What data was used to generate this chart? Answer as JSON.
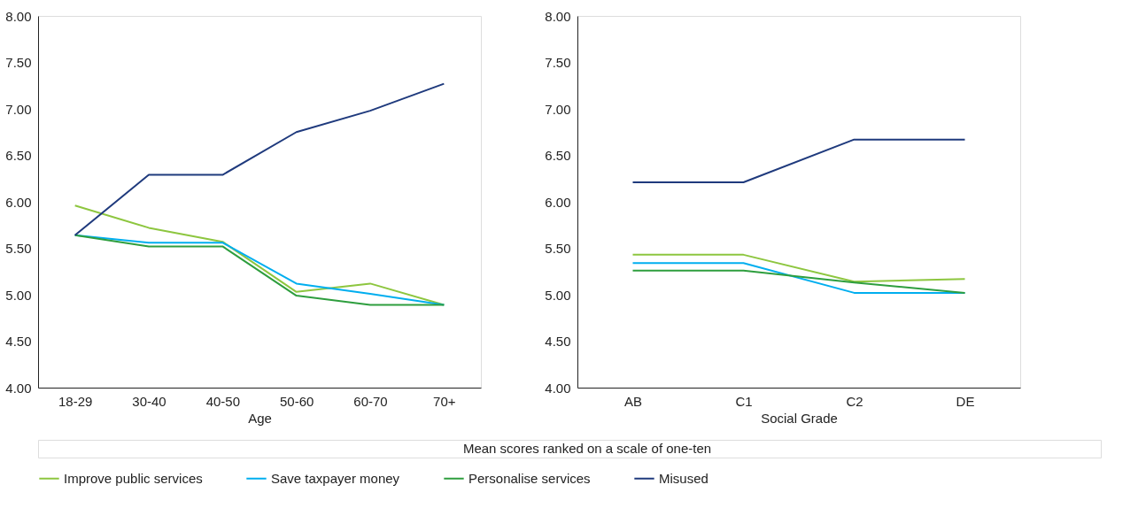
{
  "chart_data": [
    {
      "type": "line",
      "xlabel": "Age",
      "categories": [
        "18-29",
        "30-40",
        "40-50",
        "50-60",
        "60-70",
        "70+"
      ],
      "series": [
        {
          "name": "Improve public services",
          "color": "#8dc63f",
          "values": [
            5.96,
            5.72,
            5.57,
            5.03,
            5.12,
            4.89
          ]
        },
        {
          "name": "Save taxpayer money",
          "color": "#00aeef",
          "values": [
            5.64,
            5.56,
            5.56,
            5.12,
            5.01,
            4.89
          ]
        },
        {
          "name": "Personalise services",
          "color": "#2e9e3e",
          "values": [
            5.64,
            5.52,
            5.52,
            4.99,
            4.89,
            4.89
          ]
        },
        {
          "name": "Misused",
          "color": "#1f3a7d",
          "values": [
            5.64,
            6.29,
            6.29,
            6.75,
            6.98,
            7.27
          ]
        }
      ],
      "ylim": [
        4,
        8
      ],
      "yticks": [
        {
          "value": 4,
          "label": "4.00"
        },
        {
          "value": 4.5,
          "label": "4.50"
        },
        {
          "value": 5,
          "label": "5.00"
        },
        {
          "value": 5.5,
          "label": "5.50"
        },
        {
          "value": 6,
          "label": "6.00"
        },
        {
          "value": 6.5,
          "label": "6.50"
        },
        {
          "value": 7,
          "label": "7.00"
        },
        {
          "value": 7.5,
          "label": "7.50"
        },
        {
          "value": 8,
          "label": "8.00"
        }
      ],
      "grid": false,
      "legend": "bottom",
      "marker": "none",
      "annotations": [
        "Mean scores ranked on a scale of one-ten"
      ]
    },
    {
      "type": "line",
      "xlabel": "Social Grade",
      "categories": [
        "AB",
        "C1",
        "C2",
        "DE"
      ],
      "series": [
        {
          "name": "Improve public services",
          "color": "#8dc63f",
          "values": [
            5.43,
            5.43,
            5.14,
            5.17
          ]
        },
        {
          "name": "Save taxpayer money",
          "color": "#00aeef",
          "values": [
            5.34,
            5.34,
            5.02,
            5.02
          ]
        },
        {
          "name": "Personalise services",
          "color": "#2e9e3e",
          "values": [
            5.26,
            5.26,
            5.13,
            5.02
          ]
        },
        {
          "name": "Misused",
          "color": "#1f3a7d",
          "values": [
            6.21,
            6.21,
            6.67,
            6.67
          ]
        }
      ],
      "ylim": [
        4,
        8
      ],
      "yticks": [
        {
          "value": 4,
          "label": "4.00"
        },
        {
          "value": 4.5,
          "label": "4.50"
        },
        {
          "value": 5,
          "label": "5.00"
        },
        {
          "value": 5.5,
          "label": "5.50"
        },
        {
          "value": 6,
          "label": "6.00"
        },
        {
          "value": 6.5,
          "label": "6.50"
        },
        {
          "value": 7,
          "label": "7.00"
        },
        {
          "value": 7.5,
          "label": "7.50"
        },
        {
          "value": 8,
          "label": "8.00"
        }
      ],
      "grid": false,
      "legend": "bottom",
      "marker": "none"
    }
  ]
}
